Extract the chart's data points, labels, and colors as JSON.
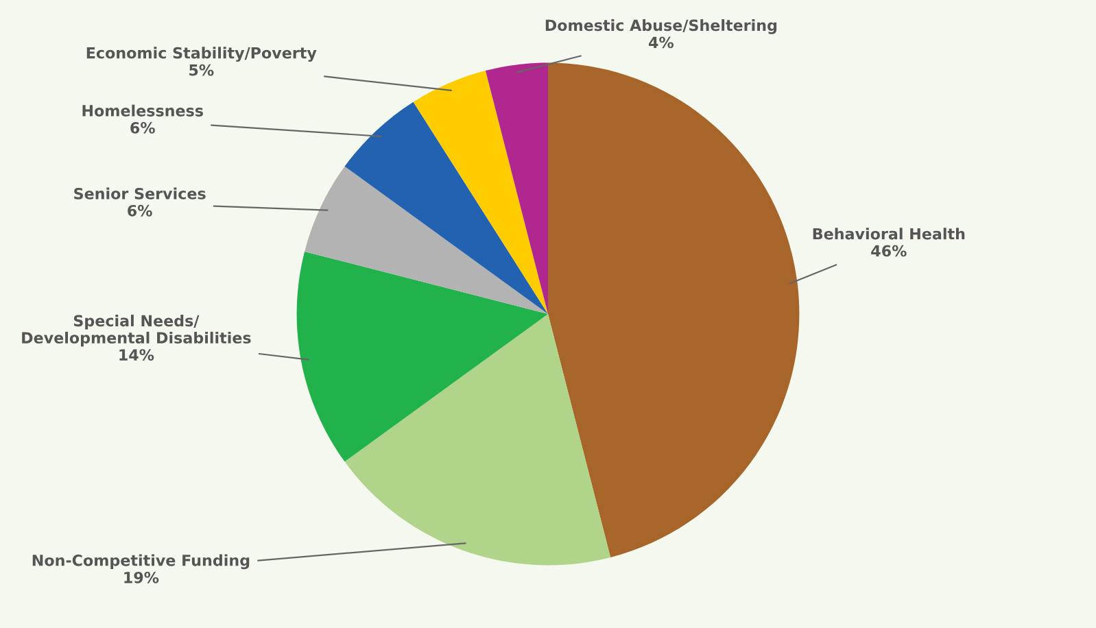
{
  "chart_data": {
    "type": "pie",
    "categories": [
      "Behavioral Health",
      "Non-Competitive Funding",
      "Special Needs/\nDevelopmental Disabilities",
      "Senior Services",
      "Homelessness",
      "Economic Stability/Poverty",
      "Domestic Abuse/Sheltering"
    ],
    "values": [
      46,
      19,
      14,
      6,
      6,
      5,
      4
    ],
    "value_labels": [
      "46%",
      "19%",
      "14%",
      "6%",
      "6%",
      "5%",
      "4%"
    ],
    "colors": [
      "#a8652a",
      "#b0d48a",
      "#22b24c",
      "#b3b3b3",
      "#2262b0",
      "#ffcc00",
      "#b0288f"
    ],
    "legend": false
  }
}
